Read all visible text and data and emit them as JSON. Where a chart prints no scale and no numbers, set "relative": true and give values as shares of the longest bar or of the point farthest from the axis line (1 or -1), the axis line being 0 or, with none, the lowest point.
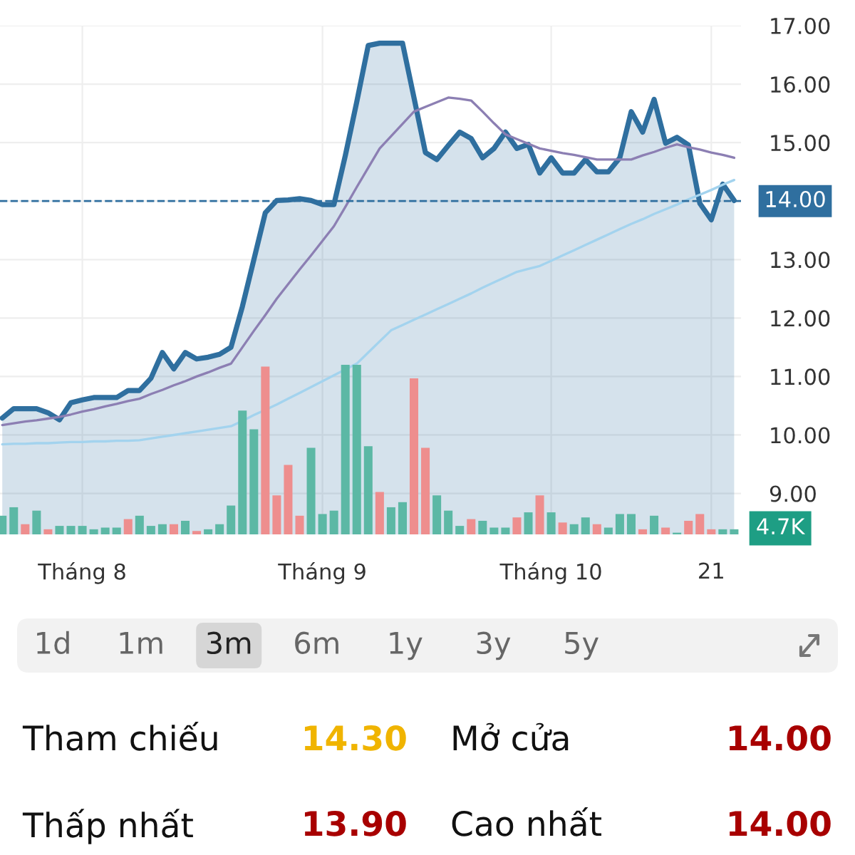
{
  "chart_data": [
    {
      "type": "area",
      "categories": [
        null,
        null,
        null,
        null,
        null,
        null,
        null,
        "Tháng 8",
        null,
        null,
        null,
        null,
        null,
        null,
        null,
        null,
        null,
        null,
        null,
        null,
        null,
        null,
        null,
        null,
        null,
        null,
        null,
        null,
        "Tháng 9",
        null,
        null,
        null,
        null,
        null,
        null,
        null,
        null,
        null,
        null,
        null,
        null,
        null,
        null,
        null,
        null,
        null,
        null,
        null,
        "Tháng 10",
        null,
        null,
        null,
        null,
        null,
        null,
        null,
        null,
        null,
        null,
        null,
        null,
        null,
        "21",
        null,
        null
      ],
      "series": [
        {
          "type": "area",
          "color": "#2f6f9f",
          "values": [
            10.29,
            10.45,
            10.45,
            10.45,
            10.38,
            10.26,
            10.55,
            10.6,
            10.64,
            10.64,
            10.64,
            10.76,
            10.76,
            10.97,
            11.41,
            11.13,
            11.41,
            11.3,
            11.33,
            11.38,
            11.5,
            12.2,
            13.0,
            13.8,
            14.01,
            14.02,
            14.04,
            14.01,
            13.94,
            13.94,
            14.78,
            15.7,
            16.66,
            16.7,
            16.7,
            16.7,
            15.77,
            14.83,
            14.71,
            14.95,
            15.18,
            15.07,
            14.74,
            14.9,
            15.18,
            14.9,
            14.97,
            14.48,
            14.74,
            14.48,
            14.48,
            14.71,
            14.5,
            14.5,
            14.74,
            15.53,
            15.18,
            15.74,
            14.99,
            15.09,
            14.96,
            13.96,
            13.68,
            14.29,
            14.01
          ]
        },
        {
          "type": "line",
          "color": "#8c7fb3",
          "values": [
            10.17,
            10.2,
            10.23,
            10.25,
            10.28,
            10.31,
            10.35,
            10.4,
            10.44,
            10.49,
            10.53,
            10.58,
            10.62,
            10.7,
            10.77,
            10.85,
            10.92,
            11.0,
            11.07,
            11.15,
            11.22,
            11.5,
            11.78,
            12.05,
            12.33,
            12.58,
            12.83,
            13.07,
            13.32,
            13.57,
            13.9,
            14.24,
            14.57,
            14.9,
            15.11,
            15.32,
            15.53,
            15.61,
            15.69,
            15.77,
            15.75,
            15.72,
            15.53,
            15.33,
            15.14,
            15.06,
            14.98,
            14.9,
            14.86,
            14.82,
            14.79,
            14.75,
            14.71,
            14.71,
            14.71,
            14.71,
            14.78,
            14.84,
            14.91,
            14.97,
            14.92,
            14.88,
            14.83,
            14.79,
            14.74
          ]
        },
        {
          "type": "line",
          "color": "#a3d3ee",
          "values": [
            9.84,
            9.85,
            9.85,
            9.86,
            9.86,
            9.87,
            9.88,
            9.88,
            9.89,
            9.89,
            9.9,
            9.9,
            9.91,
            9.94,
            9.97,
            10.0,
            10.03,
            10.06,
            10.09,
            10.12,
            10.15,
            10.24,
            10.34,
            10.43,
            10.52,
            10.62,
            10.72,
            10.82,
            10.92,
            11.02,
            11.12,
            11.22,
            11.41,
            11.6,
            11.79,
            11.88,
            11.97,
            12.06,
            12.15,
            12.24,
            12.33,
            12.42,
            12.52,
            12.61,
            12.7,
            12.79,
            12.84,
            12.89,
            12.98,
            13.07,
            13.16,
            13.25,
            13.34,
            13.43,
            13.52,
            13.61,
            13.69,
            13.78,
            13.86,
            13.94,
            14.03,
            14.11,
            14.19,
            14.28,
            14.36
          ]
        }
      ],
      "ylim": [
        8.3,
        17.0
      ],
      "yticks": [
        {
          "value": 9,
          "label": "9.00"
        },
        {
          "value": 10,
          "label": "10.00"
        },
        {
          "value": 11,
          "label": "11.00"
        },
        {
          "value": 12,
          "label": "12.00"
        },
        {
          "value": 13,
          "label": "13.00"
        },
        {
          "value": 14,
          "label": null
        },
        {
          "value": 15,
          "label": "15.00"
        },
        {
          "value": 16,
          "label": "16.00"
        },
        {
          "value": 17,
          "label": "17.00"
        }
      ],
      "ref_lines": [
        {
          "axis": "y",
          "value": 14.0,
          "label": "14.00",
          "color": "#2f6f9f",
          "line_style": "dashed"
        }
      ],
      "grid": true,
      "marker": "none"
    },
    {
      "type": "bar",
      "relative": true,
      "categories": [
        null,
        null,
        null,
        null,
        null,
        null,
        null,
        null,
        null,
        null,
        null,
        null,
        null,
        null,
        null,
        null,
        null,
        null,
        null,
        null,
        null,
        null,
        null,
        null,
        null,
        null,
        null,
        null,
        null,
        null,
        null,
        null,
        null,
        null,
        null,
        null,
        null,
        null,
        null,
        null,
        null,
        null,
        null,
        null,
        null,
        null,
        null,
        null,
        null,
        null,
        null,
        null,
        null,
        null,
        null,
        null,
        null,
        null,
        null,
        null,
        null,
        null,
        null,
        null,
        null
      ],
      "values": [
        0.11,
        0.16,
        0.06,
        0.14,
        0.03,
        0.05,
        0.05,
        0.05,
        0.03,
        0.04,
        0.04,
        0.09,
        0.11,
        0.05,
        0.06,
        0.06,
        0.08,
        0.02,
        0.03,
        0.06,
        0.17,
        0.73,
        0.62,
        0.99,
        0.23,
        0.41,
        0.11,
        0.51,
        0.12,
        0.14,
        1,
        1,
        0.52,
        0.25,
        0.16,
        0.19,
        0.92,
        0.51,
        0.23,
        0.14,
        0.05,
        0.09,
        0.08,
        0.04,
        0.04,
        0.1,
        0.13,
        0.23,
        0.13,
        0.07,
        0.06,
        0.1,
        0.06,
        0.04,
        0.12,
        0.12,
        0.03,
        0.11,
        0.04,
        0.01,
        0.08,
        0.12,
        0.03,
        0.03,
        0.03
      ],
      "colors": [
        "#5cb8a5",
        "#5cb8a5",
        "#ee8e8e",
        "#5cb8a5",
        "#ee8e8e",
        "#5cb8a5",
        "#5cb8a5",
        "#5cb8a5",
        "#5cb8a5",
        "#5cb8a5",
        "#5cb8a5",
        "#ee8e8e",
        "#5cb8a5",
        "#5cb8a5",
        "#5cb8a5",
        "#ee8e8e",
        "#5cb8a5",
        "#ee8e8e",
        "#5cb8a5",
        "#5cb8a5",
        "#5cb8a5",
        "#5cb8a5",
        "#5cb8a5",
        "#ee8e8e",
        "#ee8e8e",
        "#ee8e8e",
        "#ee8e8e",
        "#5cb8a5",
        "#5cb8a5",
        "#5cb8a5",
        "#5cb8a5",
        "#5cb8a5",
        "#5cb8a5",
        "#ee8e8e",
        "#5cb8a5",
        "#5cb8a5",
        "#ee8e8e",
        "#ee8e8e",
        "#5cb8a5",
        "#5cb8a5",
        "#5cb8a5",
        "#ee8e8e",
        "#5cb8a5",
        "#5cb8a5",
        "#5cb8a5",
        "#ee8e8e",
        "#5cb8a5",
        "#ee8e8e",
        "#5cb8a5",
        "#ee8e8e",
        "#5cb8a5",
        "#5cb8a5",
        "#ee8e8e",
        "#5cb8a5",
        "#5cb8a5",
        "#5cb8a5",
        "#ee8e8e",
        "#5cb8a5",
        "#ee8e8e",
        "#5cb8a5",
        "#ee8e8e",
        "#ee8e8e",
        "#ee8e8e",
        "#5cb8a5",
        "#5cb8a5"
      ],
      "annotations": [
        "4.7K"
      ]
    },
    {
      "type": "other",
      "annotations": [
        "1d",
        "1m",
        "3m",
        "6m",
        "1y",
        "3y",
        "5y",
        "Tham chiếu",
        "14.30",
        "Mở cửa",
        "14.00",
        "Thấp nhất",
        "13.90",
        "Cao nhất",
        "14.00"
      ]
    }
  ]
}
